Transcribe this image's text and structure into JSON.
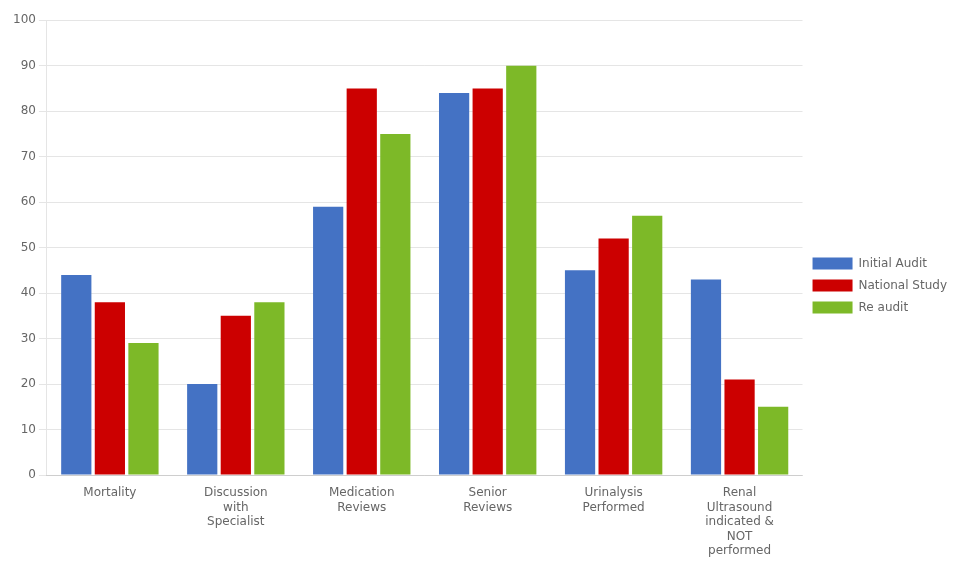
{
  "chart_data": {
    "type": "bar",
    "categories": [
      "Mortality",
      "Discussion\nwith\nSpecialist",
      "Medication\nReviews",
      "Senior\nReviews",
      "Urinalysis\nPerformed",
      "Renal\nUltrasound\nindicated &\nNOT\nperformed"
    ],
    "series": [
      {
        "name": "Initial Audit",
        "color": "#4472C4",
        "values": [
          44,
          20,
          59,
          84,
          45,
          43
        ]
      },
      {
        "name": "National Study",
        "color": "#CC0000",
        "values": [
          38,
          35,
          85,
          85,
          52,
          21
        ]
      },
      {
        "name": "Re audit",
        "color": "#7DB928",
        "values": [
          29,
          38,
          75,
          90,
          57,
          15
        ]
      }
    ],
    "ylim": [
      0,
      100
    ],
    "yticks": [
      0,
      10,
      20,
      30,
      40,
      50,
      60,
      70,
      80,
      90,
      100
    ],
    "grid": true,
    "legend": "right"
  }
}
